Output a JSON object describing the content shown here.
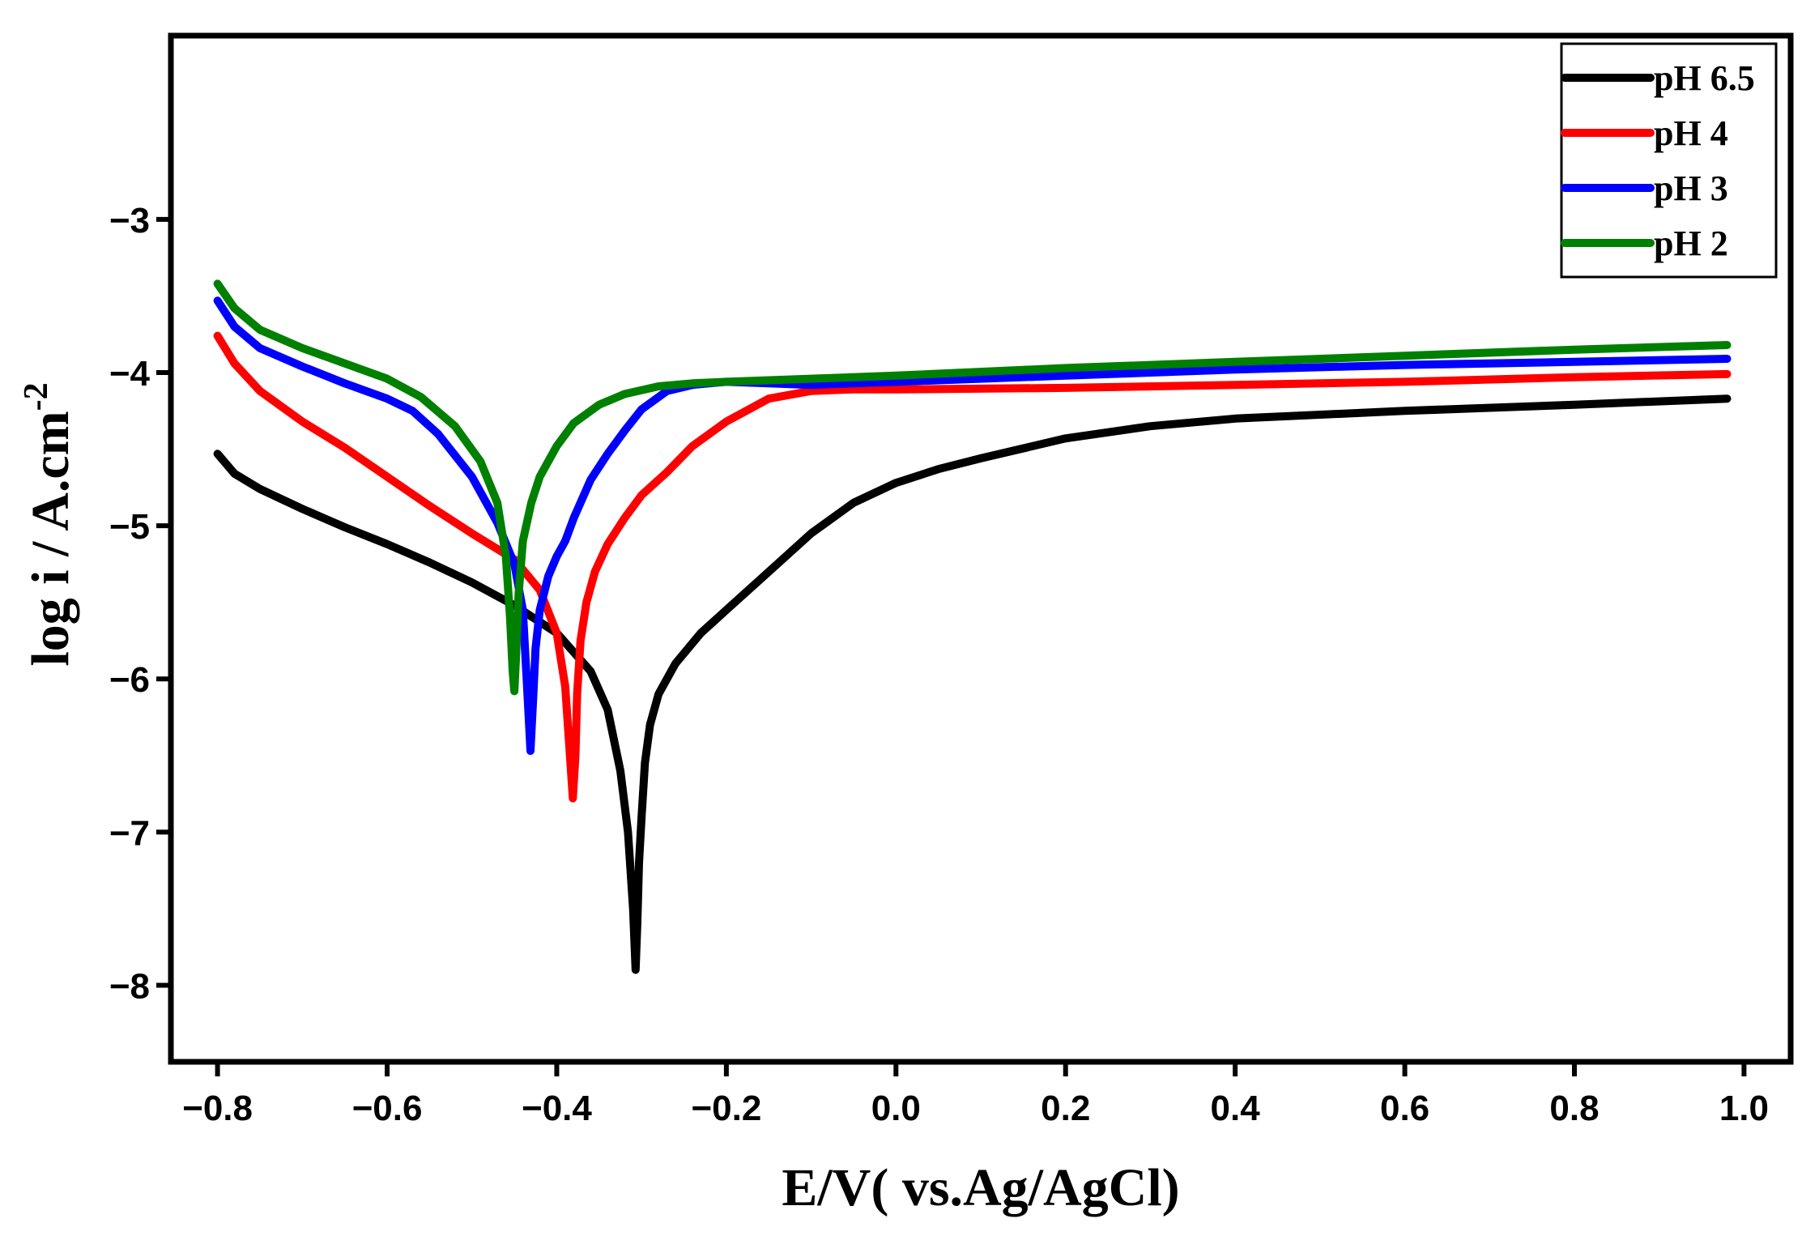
{
  "chart_data": {
    "type": "line",
    "title": "",
    "xlabel": "E/V( vs.Ag/AgCl)",
    "ylabel_main": "log i / A.cm",
    "ylabel_sup": "-2",
    "xlim": [
      -0.855,
      1.055
    ],
    "ylim": [
      -8.5,
      -1.8
    ],
    "xticks": [
      -0.8,
      -0.6,
      -0.4,
      -0.2,
      0.0,
      0.2,
      0.4,
      0.6,
      0.8,
      1.0
    ],
    "xtick_labels": [
      "−0.8",
      "−0.6",
      "−0.4",
      "−0.2",
      "0.0",
      "0.2",
      "0.4",
      "0.6",
      "0.8",
      "1.0"
    ],
    "yticks": [
      -8,
      -7,
      -6,
      -5,
      -4,
      -3
    ],
    "ytick_labels": [
      "−8",
      "−7",
      "−6",
      "−5",
      "−4",
      "−3"
    ],
    "grid": false,
    "legend_position": "top-right",
    "series": [
      {
        "name": "pH 6.5",
        "color": "#000000",
        "x": [
          -0.8,
          -0.78,
          -0.75,
          -0.7,
          -0.65,
          -0.6,
          -0.55,
          -0.5,
          -0.45,
          -0.4,
          -0.36,
          -0.34,
          -0.325,
          -0.316,
          -0.31,
          -0.307,
          -0.305,
          -0.303,
          -0.3,
          -0.296,
          -0.29,
          -0.28,
          -0.26,
          -0.23,
          -0.2,
          -0.15,
          -0.1,
          -0.05,
          0.0,
          0.05,
          0.1,
          0.2,
          0.3,
          0.4,
          0.6,
          0.8,
          0.98
        ],
        "y": [
          -4.53,
          -4.66,
          -4.76,
          -4.89,
          -5.01,
          -5.12,
          -5.24,
          -5.37,
          -5.52,
          -5.7,
          -5.95,
          -6.2,
          -6.6,
          -7.0,
          -7.5,
          -7.9,
          -7.6,
          -7.2,
          -6.9,
          -6.55,
          -6.3,
          -6.1,
          -5.9,
          -5.7,
          -5.55,
          -5.3,
          -5.05,
          -4.85,
          -4.72,
          -4.63,
          -4.56,
          -4.43,
          -4.35,
          -4.3,
          -4.25,
          -4.21,
          -4.17
        ]
      },
      {
        "name": "pH 4",
        "color": "#ff0000",
        "x": [
          -0.8,
          -0.78,
          -0.75,
          -0.7,
          -0.65,
          -0.6,
          -0.55,
          -0.5,
          -0.45,
          -0.42,
          -0.4,
          -0.39,
          -0.385,
          -0.381,
          -0.378,
          -0.376,
          -0.372,
          -0.365,
          -0.355,
          -0.34,
          -0.32,
          -0.3,
          -0.27,
          -0.24,
          -0.2,
          -0.15,
          -0.1,
          -0.05,
          0.0,
          0.2,
          0.4,
          0.6,
          0.8,
          0.98
        ],
        "y": [
          -3.76,
          -3.94,
          -4.12,
          -4.32,
          -4.49,
          -4.68,
          -4.87,
          -5.05,
          -5.22,
          -5.42,
          -5.7,
          -6.05,
          -6.45,
          -6.78,
          -6.5,
          -6.1,
          -5.75,
          -5.5,
          -5.3,
          -5.12,
          -4.95,
          -4.8,
          -4.65,
          -4.48,
          -4.32,
          -4.17,
          -4.12,
          -4.11,
          -4.11,
          -4.1,
          -4.08,
          -4.06,
          -4.03,
          -4.01
        ]
      },
      {
        "name": "pH 3",
        "color": "#0000ff",
        "x": [
          -0.8,
          -0.78,
          -0.75,
          -0.7,
          -0.65,
          -0.6,
          -0.57,
          -0.54,
          -0.5,
          -0.47,
          -0.45,
          -0.44,
          -0.435,
          -0.431,
          -0.428,
          -0.425,
          -0.42,
          -0.41,
          -0.4,
          -0.39,
          -0.38,
          -0.36,
          -0.34,
          -0.32,
          -0.3,
          -0.27,
          -0.24,
          -0.2,
          -0.15,
          -0.1,
          0.0,
          0.2,
          0.4,
          0.6,
          0.8,
          0.98
        ],
        "y": [
          -3.53,
          -3.7,
          -3.84,
          -3.96,
          -4.07,
          -4.17,
          -4.25,
          -4.4,
          -4.68,
          -4.98,
          -5.25,
          -5.55,
          -6.05,
          -6.47,
          -6.15,
          -5.8,
          -5.55,
          -5.33,
          -5.2,
          -5.1,
          -4.95,
          -4.7,
          -4.53,
          -4.38,
          -4.24,
          -4.12,
          -4.08,
          -4.06,
          -4.07,
          -4.08,
          -4.06,
          -4.02,
          -3.98,
          -3.95,
          -3.93,
          -3.91
        ]
      },
      {
        "name": "pH 2",
        "color": "#008000",
        "x": [
          -0.8,
          -0.78,
          -0.75,
          -0.7,
          -0.65,
          -0.6,
          -0.56,
          -0.52,
          -0.49,
          -0.47,
          -0.46,
          -0.455,
          -0.452,
          -0.45,
          -0.448,
          -0.445,
          -0.44,
          -0.43,
          -0.42,
          -0.4,
          -0.38,
          -0.35,
          -0.32,
          -0.28,
          -0.24,
          -0.2,
          -0.1,
          0.0,
          0.2,
          0.4,
          0.6,
          0.8,
          0.98
        ],
        "y": [
          -3.42,
          -3.58,
          -3.72,
          -3.84,
          -3.94,
          -4.04,
          -4.16,
          -4.35,
          -4.58,
          -4.85,
          -5.2,
          -5.6,
          -5.95,
          -6.08,
          -5.85,
          -5.45,
          -5.1,
          -4.85,
          -4.68,
          -4.48,
          -4.33,
          -4.21,
          -4.14,
          -4.09,
          -4.07,
          -4.06,
          -4.04,
          -4.02,
          -3.97,
          -3.93,
          -3.89,
          -3.85,
          -3.82
        ]
      }
    ]
  }
}
